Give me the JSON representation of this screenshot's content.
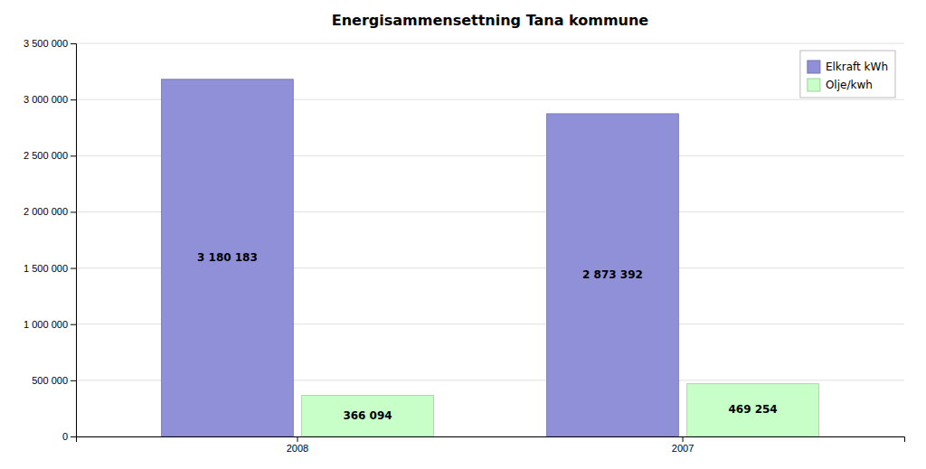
{
  "chart_data": {
    "type": "bar",
    "title": "Energisammensettning Tana kommune",
    "categories": [
      "2008",
      "2007"
    ],
    "series": [
      {
        "name": "Elkraft kWh",
        "color": "#9090d8",
        "values": [
          3180183,
          2873392
        ],
        "value_labels": [
          "3 180 183",
          "2 873 392"
        ]
      },
      {
        "name": "Olje/kwh",
        "color": "#c8ffc8",
        "values": [
          366094,
          469254
        ],
        "value_labels": [
          "366 094",
          "469 254"
        ]
      }
    ],
    "ylim": [
      0,
      3500000
    ],
    "yticks": [
      0,
      {
        "value": 500000,
        "label": "500 000"
      },
      {
        "value": 1000000,
        "label": "1 000 000"
      },
      {
        "value": 1500000,
        "label": "1 500 000"
      },
      {
        "value": 2000000,
        "label": "2 000 000"
      },
      {
        "value": 2500000,
        "label": "2 500 000"
      },
      {
        "value": 3000000,
        "label": "3 000 000"
      },
      {
        "value": 3500000,
        "label": "3 500 000"
      }
    ],
    "grid": true,
    "legend": "upper right",
    "data_labels": true
  }
}
